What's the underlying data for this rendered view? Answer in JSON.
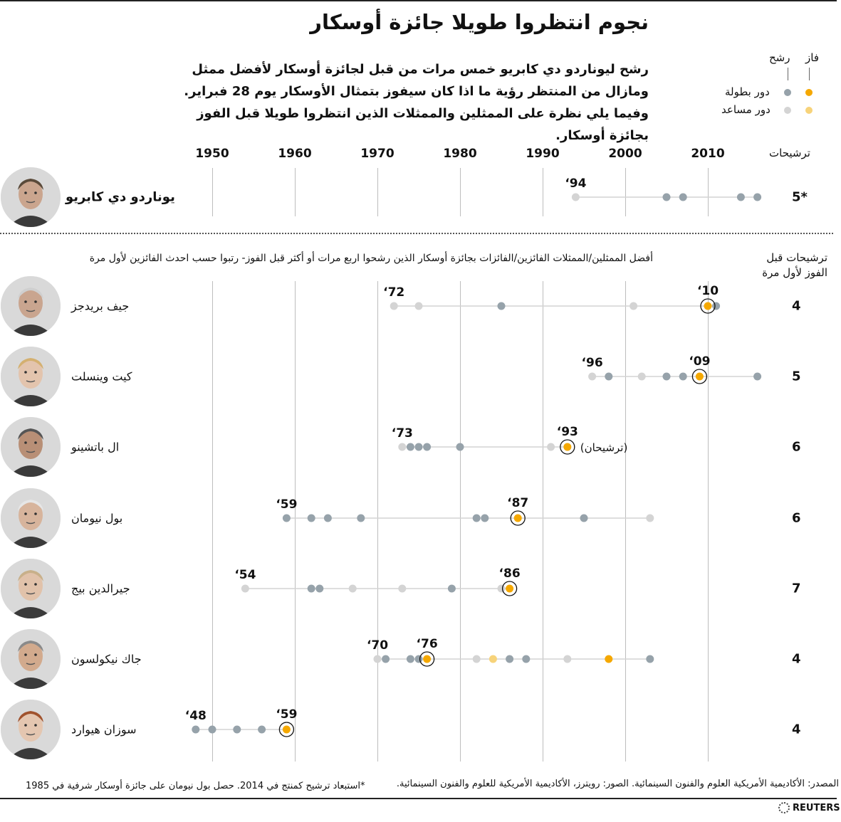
{
  "header": {
    "title": "نجوم انتظروا طويلا جائزة أوسكار",
    "intro": "رشح ليوناردو دي كابريو خمس مرات من قبل لجائزة أوسكار لأفضل ممثل ومازال من المنتظر رؤية ما اذا كان سيفوز بتمثال الأوسكار يوم 28 فبراير. وفيما يلي نظرة على الممثلين والممثلات الذين انتظروا طويلا قبل الفوز بجائزة أوسكار."
  },
  "legend": {
    "won": "فاز",
    "nominated": "رشح",
    "lead_role": "دور بطولة",
    "supporting_role": "دور مساعد"
  },
  "headers": {
    "nominations": "ترشيحات",
    "subtitle": "أفضل الممثلين/الممثلات الفائزين/الفائزات بجائزة أوسكار الذين رشحوا اربع مرات أو أكثر قبل الفوز- رتبوا حسب احدث الفائزين لأول مرة",
    "nominations_before_win": "ترشيحات قبل الفوز لأول مرة"
  },
  "colors": {
    "lead_nominated": "#96a2aa",
    "supporting_nominated": "#d4d4d4",
    "lead_won": "#f5a800",
    "supporting_won": "#f7d37a",
    "line": "#d3d3d3"
  },
  "chart_data": {
    "type": "scatter",
    "x_ticks": [
      1950,
      1960,
      1970,
      1980,
      1990,
      2000,
      2010
    ],
    "xlim": [
      1943.5,
      2016.5
    ],
    "featured": {
      "name": "يوناردو دي كابريو",
      "count": "5*",
      "label_start": "‘94",
      "points": [
        {
          "year": 1994,
          "role": "supporting",
          "won": false
        },
        {
          "year": 2005,
          "role": "lead",
          "won": false
        },
        {
          "year": 2007,
          "role": "lead",
          "won": false
        },
        {
          "year": 2014,
          "role": "lead",
          "won": false
        },
        {
          "year": 2016,
          "role": "lead",
          "won": false
        }
      ]
    },
    "series": [
      {
        "name": "جيف بريدجز",
        "count": "4",
        "label_start": "‘72",
        "label_win": "‘10",
        "win_year": 2010,
        "points": [
          {
            "year": 1972,
            "role": "supporting",
            "won": false
          },
          {
            "year": 1975,
            "role": "supporting",
            "won": false
          },
          {
            "year": 1985,
            "role": "lead",
            "won": false
          },
          {
            "year": 2001,
            "role": "supporting",
            "won": false
          },
          {
            "year": 2011,
            "role": "lead",
            "won": false
          },
          {
            "year": 2010,
            "role": "lead",
            "won": true
          }
        ]
      },
      {
        "name": "كيت وينسلت",
        "count": "5",
        "label_start": "‘96",
        "label_win": "‘09",
        "win_year": 2009,
        "points": [
          {
            "year": 1996,
            "role": "supporting",
            "won": false
          },
          {
            "year": 1998,
            "role": "lead",
            "won": false
          },
          {
            "year": 2002,
            "role": "supporting",
            "won": false
          },
          {
            "year": 2005,
            "role": "lead",
            "won": false
          },
          {
            "year": 2007,
            "role": "lead",
            "won": false
          },
          {
            "year": 2016,
            "role": "lead",
            "won": false
          },
          {
            "year": 2009,
            "role": "lead",
            "won": true
          }
        ]
      },
      {
        "name": "ال باتشينو",
        "count": "6",
        "label_start": "‘73",
        "label_win": "‘93",
        "win_year": 1993,
        "win_note": "(ترشيحان)",
        "points": [
          {
            "year": 1973,
            "role": "supporting",
            "won": false
          },
          {
            "year": 1974,
            "role": "lead",
            "won": false
          },
          {
            "year": 1975,
            "role": "lead",
            "won": false
          },
          {
            "year": 1976,
            "role": "lead",
            "won": false
          },
          {
            "year": 1980,
            "role": "lead",
            "won": false
          },
          {
            "year": 1991,
            "role": "supporting",
            "won": false
          },
          {
            "year": 1993,
            "role": "supporting",
            "won": false
          },
          {
            "year": 1993,
            "role": "lead",
            "won": true
          }
        ]
      },
      {
        "name": "بول نيومان",
        "count": "6",
        "label_start": "‘59",
        "label_win": "‘87",
        "win_year": 1987,
        "points": [
          {
            "year": 1959,
            "role": "lead",
            "won": false
          },
          {
            "year": 1962,
            "role": "lead",
            "won": false
          },
          {
            "year": 1964,
            "role": "lead",
            "won": false
          },
          {
            "year": 1968,
            "role": "lead",
            "won": false
          },
          {
            "year": 1982,
            "role": "lead",
            "won": false
          },
          {
            "year": 1983,
            "role": "lead",
            "won": false
          },
          {
            "year": 1995,
            "role": "lead",
            "won": false
          },
          {
            "year": 2003,
            "role": "supporting",
            "won": false
          },
          {
            "year": 1987,
            "role": "lead",
            "won": true
          }
        ]
      },
      {
        "name": "جيرالدين بيج",
        "count": "7",
        "label_start": "‘54",
        "label_win": "‘86",
        "win_year": 1986,
        "points": [
          {
            "year": 1954,
            "role": "supporting",
            "won": false
          },
          {
            "year": 1962,
            "role": "lead",
            "won": false
          },
          {
            "year": 1963,
            "role": "lead",
            "won": false
          },
          {
            "year": 1967,
            "role": "supporting",
            "won": false
          },
          {
            "year": 1973,
            "role": "supporting",
            "won": false
          },
          {
            "year": 1979,
            "role": "lead",
            "won": false
          },
          {
            "year": 1985,
            "role": "supporting",
            "won": false
          },
          {
            "year": 1986,
            "role": "lead",
            "won": true
          }
        ]
      },
      {
        "name": "جاك نيكولسون",
        "count": "4",
        "label_start": "‘70",
        "label_win": "‘76",
        "win_year": 1976,
        "points": [
          {
            "year": 1970,
            "role": "supporting",
            "won": false
          },
          {
            "year": 1971,
            "role": "lead",
            "won": false
          },
          {
            "year": 1974,
            "role": "lead",
            "won": false
          },
          {
            "year": 1975,
            "role": "lead",
            "won": false
          },
          {
            "year": 1982,
            "role": "supporting",
            "won": false
          },
          {
            "year": 1984,
            "role": "supporting",
            "won": true
          },
          {
            "year": 1986,
            "role": "lead",
            "won": false
          },
          {
            "year": 1988,
            "role": "lead",
            "won": false
          },
          {
            "year": 1993,
            "role": "supporting",
            "won": false
          },
          {
            "year": 1998,
            "role": "lead",
            "won": true
          },
          {
            "year": 2003,
            "role": "lead",
            "won": false
          },
          {
            "year": 1976,
            "role": "lead",
            "won": true
          }
        ]
      },
      {
        "name": "سوزان هيوارد",
        "count": "4",
        "label_start": "‘48",
        "label_win": "‘59",
        "win_year": 1959,
        "points": [
          {
            "year": 1948,
            "role": "lead",
            "won": false
          },
          {
            "year": 1950,
            "role": "lead",
            "won": false
          },
          {
            "year": 1953,
            "role": "lead",
            "won": false
          },
          {
            "year": 1956,
            "role": "lead",
            "won": false
          },
          {
            "year": 1959,
            "role": "lead",
            "won": true
          }
        ]
      }
    ]
  },
  "footer": {
    "source": "المصدر: الأكاديمية الأمريكية العلوم والفنون السينمائية. الصور: رويترز، الأكاديمية الأمريكية للعلوم والفنون السينمائية.",
    "note": "*استبعاد ترشيح كمنتج في 2014. حصل بول نيومان على جائزة أوسكار شرفية في 1985",
    "brand": "REUTERS"
  }
}
